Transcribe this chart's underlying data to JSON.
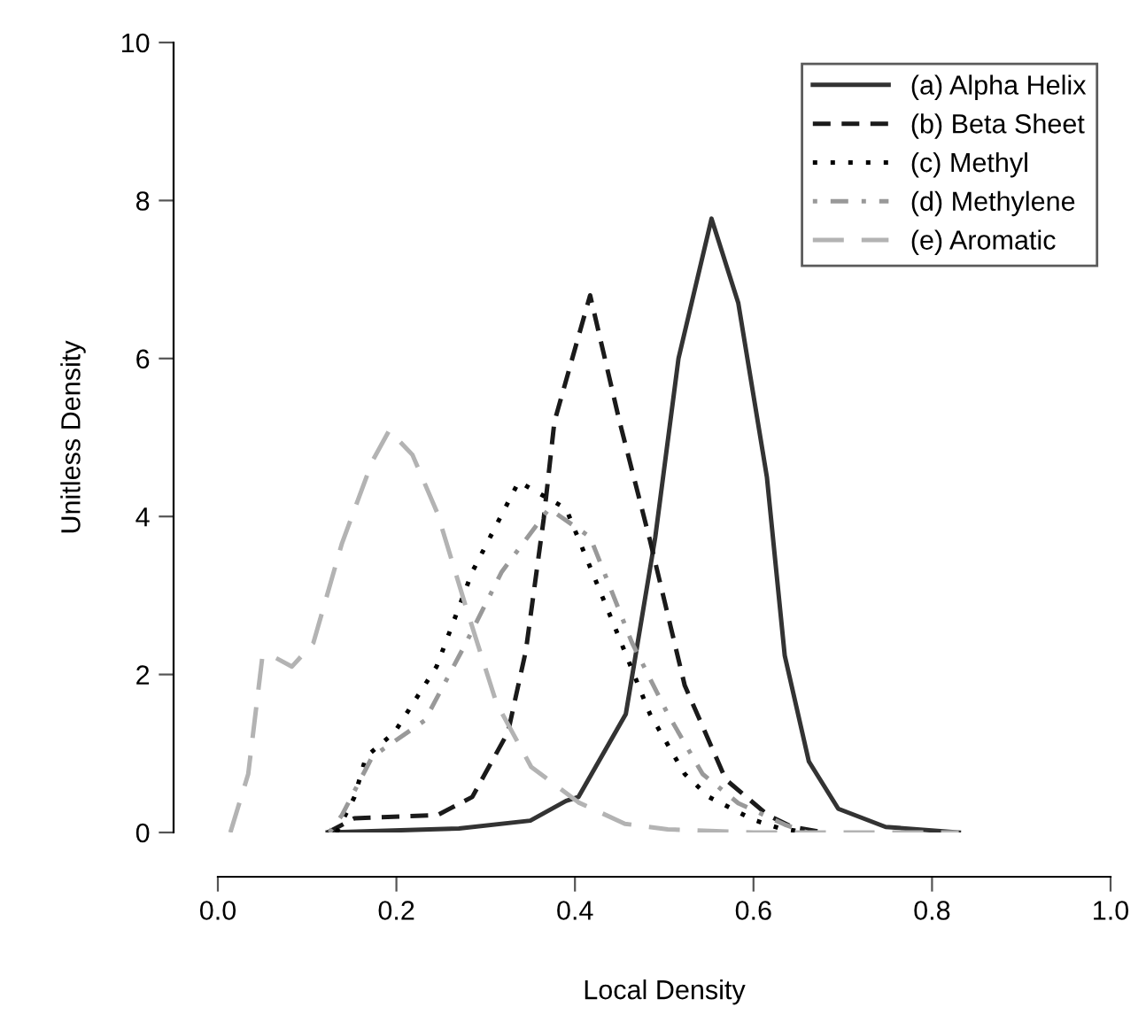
{
  "chart_data": {
    "type": "line",
    "xlabel": "Local Density",
    "ylabel": "Unitless Density",
    "xlim": [
      0,
      1
    ],
    "ylim": [
      0,
      10
    ],
    "xticks": [
      {
        "value": 0,
        "label": "0.0"
      },
      0.2,
      0.4,
      0.6,
      0.8,
      {
        "value": 1,
        "label": "1.0"
      }
    ],
    "yticks": [
      0,
      2,
      4,
      6,
      8,
      10
    ],
    "grid": false,
    "legend": "top right",
    "marker": "none",
    "series": [
      {
        "name": "(a) Alpha Helix",
        "color": "#333333",
        "line_style": "solid",
        "x": [
          0.123,
          0.27,
          0.35,
          0.39,
          0.404,
          0.457,
          0.49,
          0.516,
          0.553,
          0.583,
          0.615,
          0.635,
          0.662,
          0.695,
          0.748,
          0.83
        ],
        "values": [
          0,
          0.05,
          0.15,
          0.4,
          0.45,
          1.5,
          3.74,
          6.0,
          7.77,
          6.7,
          4.5,
          2.24,
          0.9,
          0.3,
          0.07,
          0
        ]
      },
      {
        "name": "(b) Beta Sheet",
        "color": "#1a1a1a",
        "line_style": "dashed",
        "x": [
          0.123,
          0.153,
          0.246,
          0.285,
          0.325,
          0.345,
          0.365,
          0.377,
          0.417,
          0.45,
          0.484,
          0.523,
          0.569,
          0.616,
          0.643,
          0.68
        ],
        "values": [
          0,
          0.18,
          0.22,
          0.45,
          1.27,
          2.3,
          3.97,
          5.2,
          6.8,
          5.2,
          3.7,
          1.86,
          0.67,
          0.22,
          0.07,
          0
        ]
      },
      {
        "name": "(c) Methyl",
        "color": "#000000",
        "line_style": "dotted",
        "x": [
          0.133,
          0.153,
          0.166,
          0.198,
          0.245,
          0.285,
          0.337,
          0.39,
          0.444,
          0.484,
          0.523,
          0.55,
          0.6,
          0.63,
          0.66
        ],
        "values": [
          0,
          0.45,
          0.96,
          1.27,
          2.1,
          3.3,
          4.44,
          4.1,
          2.62,
          1.5,
          0.74,
          0.45,
          0.16,
          0.05,
          0
        ]
      },
      {
        "name": "(d) Methylene",
        "color": "#999999",
        "line_style": "dashdot",
        "x": [
          0.125,
          0.139,
          0.173,
          0.232,
          0.278,
          0.318,
          0.371,
          0.417,
          0.464,
          0.504,
          0.543,
          0.583,
          0.635,
          0.66
        ],
        "values": [
          0,
          0.22,
          0.96,
          1.42,
          2.4,
          3.3,
          4.1,
          3.74,
          2.4,
          1.5,
          0.74,
          0.37,
          0.1,
          0
        ]
      },
      {
        "name": "(e) Aromatic",
        "color": "#b3b3b3",
        "line_style": "longdash",
        "x": [
          0.014,
          0.034,
          0.05,
          0.06,
          0.083,
          0.107,
          0.139,
          0.173,
          0.192,
          0.218,
          0.246,
          0.278,
          0.312,
          0.351,
          0.404,
          0.456,
          0.504,
          0.6,
          0.7,
          0.83
        ],
        "values": [
          0,
          0.74,
          2.24,
          2.24,
          2.1,
          2.4,
          3.66,
          4.7,
          5.09,
          4.78,
          4.04,
          2.85,
          1.64,
          0.83,
          0.38,
          0.11,
          0.04,
          0,
          0,
          0
        ]
      }
    ]
  }
}
